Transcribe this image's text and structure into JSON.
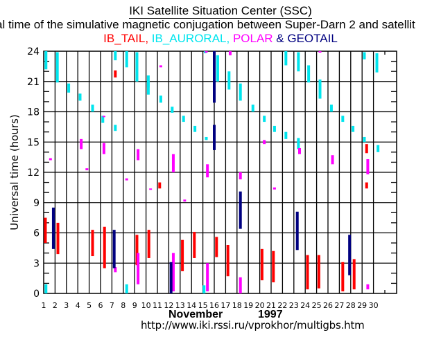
{
  "title": "IKI Satellite Situation Center (SSC)",
  "subtitle": "al time of the simulative magnetic conjugation between Super-Darn 2 and satellit",
  "legend": [
    {
      "label": "IB_TAIL,",
      "color": "#ff0000"
    },
    {
      "label": " IB_AURORAL,",
      "color": "#00e5ee"
    },
    {
      "label": " POLAR",
      "color": "#ff00ff"
    },
    {
      "label": " & ",
      "color": "#000080"
    },
    {
      "label": "GEOTAIL",
      "color": "#000080"
    }
  ],
  "month_label": "November",
  "year_label": "1997",
  "url": "http://www.iki.rssi.ru/vprokhor/multigbs.htm",
  "chart_data": {
    "type": "bar",
    "title": "IKI Satellite Situation Center (SSC)",
    "xlabel": "November 1997",
    "ylabel": "Universal time (hours)",
    "xlim": [
      1,
      31
    ],
    "ylim": [
      0,
      24
    ],
    "x_ticks": [
      "1",
      "2",
      "3",
      "4",
      "5",
      "6",
      "7",
      "8",
      "9",
      "10",
      "11",
      "12",
      "13",
      "14",
      "15",
      "16",
      "17",
      "18",
      "19",
      "20",
      "21",
      "22",
      "23",
      "24",
      "25",
      "26",
      "27",
      "28",
      "29",
      "30"
    ],
    "y_ticks": [
      0,
      3,
      6,
      9,
      12,
      15,
      18,
      21,
      24
    ],
    "grid": true,
    "colors": {
      "IB_TAIL": "#ff0000",
      "IB_AURORAL": "#00e5ee",
      "POLAR": "#ff00ff",
      "GEOTAIL": "#000080"
    },
    "series": [
      {
        "name": "IB_TAIL",
        "segments": [
          [
            1.15,
            5.0,
            7.5
          ],
          [
            2.25,
            3.9,
            7.0
          ],
          [
            5.3,
            3.7,
            6.3
          ],
          [
            6.35,
            2.5,
            6.6
          ],
          [
            7.3,
            21.4,
            22.1
          ],
          [
            9.2,
            2.8,
            5.8
          ],
          [
            10.25,
            3.5,
            6.3
          ],
          [
            11.2,
            10.4,
            11.0
          ],
          [
            13.2,
            2.2,
            5.3
          ],
          [
            14.25,
            3.5,
            6.1
          ],
          [
            16.2,
            3.6,
            5.6
          ],
          [
            17.2,
            1.7,
            4.8
          ],
          [
            20.2,
            1.3,
            4.4
          ],
          [
            21.2,
            1.1,
            4.2
          ],
          [
            24.2,
            0.4,
            3.8
          ],
          [
            25.2,
            0.5,
            3.8
          ],
          [
            27.3,
            0.2,
            3.1
          ],
          [
            28.3,
            0.4,
            3.4
          ],
          [
            29.4,
            13.9,
            14.8
          ],
          [
            29.4,
            10.4,
            11.0
          ]
        ]
      },
      {
        "name": "IB_AURORAL",
        "segments": [
          [
            1.2,
            22.2,
            25.0
          ],
          [
            1.2,
            0.0,
            0.9
          ],
          [
            2.2,
            20.9,
            23.9
          ],
          [
            3.2,
            19.9,
            20.8
          ],
          [
            4.2,
            19.1,
            19.8
          ],
          [
            5.3,
            18.0,
            18.7
          ],
          [
            6.2,
            16.9,
            17.6
          ],
          [
            7.3,
            16.1,
            16.7
          ],
          [
            7.3,
            23.1,
            25.0
          ],
          [
            8.3,
            22.4,
            25.0
          ],
          [
            8.3,
            0.0,
            0.9
          ],
          [
            9.2,
            21.0,
            23.9
          ],
          [
            10.2,
            20.4,
            21.6
          ],
          [
            10.2,
            19.7,
            21.1
          ],
          [
            11.3,
            18.9,
            19.6
          ],
          [
            12.3,
            17.9,
            18.5
          ],
          [
            13.3,
            17.0,
            17.6
          ],
          [
            14.3,
            16.0,
            16.6
          ],
          [
            15.2,
            23.8,
            25.0
          ],
          [
            15.3,
            15.2,
            15.5
          ],
          [
            15.1,
            0.0,
            0.8
          ],
          [
            16.3,
            21.0,
            23.6
          ],
          [
            17.3,
            20.2,
            22.0
          ],
          [
            18.3,
            19.1,
            20.8
          ],
          [
            19.4,
            18.0,
            18.7
          ],
          [
            20.4,
            17.0,
            17.6
          ],
          [
            21.3,
            16.0,
            16.6
          ],
          [
            22.3,
            15.3,
            16.0
          ],
          [
            22.3,
            22.6,
            24.4
          ],
          [
            23.4,
            14.3,
            15.4
          ],
          [
            23.4,
            22.0,
            23.9
          ],
          [
            24.3,
            20.9,
            22.6
          ],
          [
            25.3,
            19.3,
            21.2
          ],
          [
            26.3,
            18.0,
            18.7
          ],
          [
            27.3,
            17.0,
            17.6
          ],
          [
            28.2,
            16.0,
            16.6
          ],
          [
            29.2,
            15.0,
            15.5
          ],
          [
            29.2,
            23.2,
            23.9
          ],
          [
            30.3,
            21.9,
            23.8
          ],
          [
            30.4,
            14.0,
            14.7
          ]
        ]
      },
      {
        "name": "POLAR",
        "segments": [
          [
            1.6,
            13.2,
            13.4
          ],
          [
            4.3,
            14.3,
            15.3
          ],
          [
            4.8,
            12.2,
            12.4
          ],
          [
            6.3,
            17.5,
            17.6
          ],
          [
            6.3,
            13.8,
            14.9
          ],
          [
            7.3,
            2.1,
            2.6
          ],
          [
            8.3,
            11.2,
            11.4
          ],
          [
            9.3,
            13.2,
            14.3
          ],
          [
            9.3,
            0.9,
            4.0
          ],
          [
            10.4,
            10.3,
            10.4
          ],
          [
            11.3,
            22.4,
            22.6
          ],
          [
            12.4,
            12.0,
            13.8
          ],
          [
            12.4,
            0.2,
            4.0
          ],
          [
            13.4,
            9.1,
            9.3
          ],
          [
            15.3,
            24.0,
            24.7
          ],
          [
            15.4,
            11.5,
            12.8
          ],
          [
            15.4,
            0.2,
            3.0
          ],
          [
            17.4,
            23.6,
            24.9
          ],
          [
            18.3,
            11.3,
            12.0
          ],
          [
            18.3,
            0.0,
            1.6
          ],
          [
            20.4,
            14.8,
            15.2
          ],
          [
            21.3,
            10.3,
            10.5
          ],
          [
            23.5,
            13.8,
            14.4
          ],
          [
            25.3,
            23.9,
            24.1
          ],
          [
            26.4,
            12.8,
            13.7
          ],
          [
            29.5,
            11.8,
            13.3
          ],
          [
            29.5,
            0.4,
            0.9
          ]
        ]
      },
      {
        "name": "GEOTAIL",
        "segments": [
          [
            1.85,
            4.4,
            8.5
          ],
          [
            7.2,
            2.5,
            6.3
          ],
          [
            12.2,
            0.0,
            3.1
          ],
          [
            16.0,
            18.9,
            24.0
          ],
          [
            16.0,
            14.2,
            16.7
          ],
          [
            18.3,
            6.4,
            10.1
          ],
          [
            23.3,
            4.3,
            8.1
          ],
          [
            27.9,
            1.8,
            5.8
          ]
        ]
      }
    ]
  }
}
